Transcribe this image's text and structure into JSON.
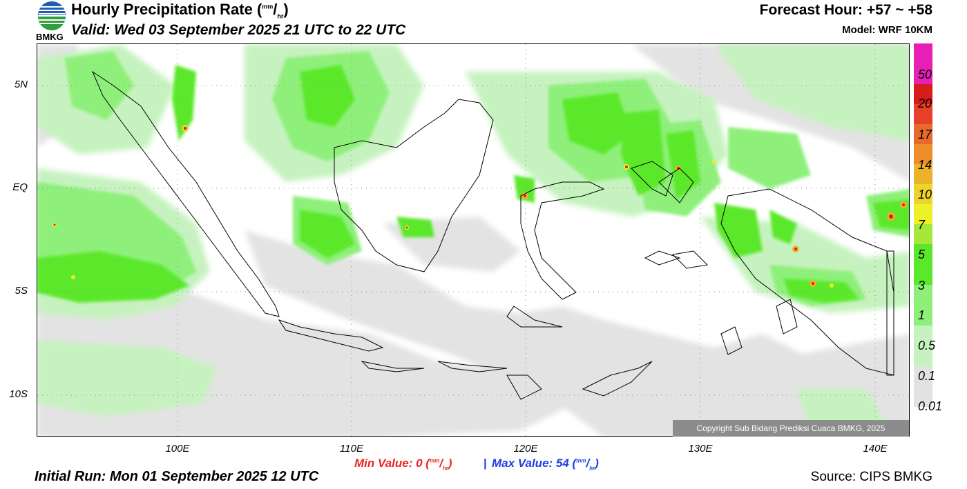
{
  "header": {
    "title_main": "Hourly Precipitation Rate (",
    "title_unit_num": "mm",
    "title_unit_den": "hr",
    "title_close": ")",
    "valid": "Valid: Wed 03 September 2025 21 UTC to 22 UTC",
    "forecast_hour": "Forecast Hour: +57 ~ +58",
    "model": "Model: WRF 10KM",
    "logo_text": "BMKG"
  },
  "map": {
    "lat_labels": [
      "5N",
      "EQ",
      "5S",
      "10S"
    ],
    "lon_labels": [
      "100E",
      "110E",
      "120E",
      "130E",
      "140E"
    ],
    "copyright": "Copyright Sub Bidang Prediksi Cuaca BMKG, 2025"
  },
  "legend": {
    "labels": [
      "50",
      "20",
      "17",
      "14",
      "10",
      "7",
      "5",
      "3",
      "1",
      "0.5",
      "0.1",
      "0.01"
    ],
    "colors": [
      "#e81fb5",
      "#d81b1b",
      "#e8402a",
      "#e86a2a",
      "#ec8f2a",
      "#ecb22a",
      "#ecd42a",
      "#eef02a",
      "#a6e83a",
      "#5ce82a",
      "#8ef07a",
      "#c6f2bf",
      "#e2e2e2"
    ]
  },
  "footer": {
    "min_label": "Min Value:   0 (",
    "max_label": "Max Value:  54 (",
    "unit_num": "mm",
    "unit_den": "hr",
    "unit_close": ")",
    "separator": "|",
    "initial_run": "Initial Run: Mon 01 September 2025 12 UTC",
    "source": "Source: CIPS BMKG"
  }
}
